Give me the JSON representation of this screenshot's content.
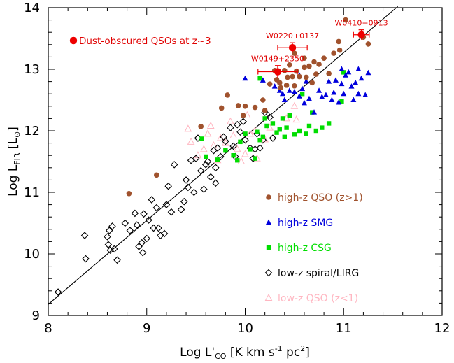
{
  "chart_data": {
    "type": "scatter",
    "xlabel": {
      "pre": "Log L'",
      "sub": "CO",
      "post": " [K km s",
      "sup": "-1",
      "post2": " pc",
      "sup2": "2",
      "post3": "]"
    },
    "ylabel": {
      "pre": "Log L",
      "sub": "FIR",
      "post": " [L",
      "sub2": "⊙",
      "post2": "]"
    },
    "xlim": [
      8,
      12
    ],
    "ylim": [
      9,
      14
    ],
    "xticks": [
      "8",
      "9",
      "10",
      "11",
      "12"
    ],
    "yticks": [
      "9",
      "10",
      "11",
      "12",
      "13",
      "14"
    ],
    "fit_line": {
      "x": [
        8.0,
        11.55
      ],
      "y": [
        9.18,
        14.02
      ]
    },
    "colors": {
      "qso_highz": "#a0522d",
      "smg": "#0000dd",
      "csg": "#00dd00",
      "spiral": "#000000",
      "qso_lowz": "#ffb6c1",
      "dust": "#ee0000"
    },
    "legend": [
      {
        "label": "high-z QSO (z>1)",
        "key": "qso_highz",
        "marker": "circle"
      },
      {
        "label": "high-z SMG",
        "key": "smg",
        "marker": "triangle"
      },
      {
        "label": "high-z CSG",
        "key": "csg",
        "marker": "square"
      },
      {
        "label": "low-z spiral/LIRG",
        "key": "spiral",
        "marker": "diamond"
      },
      {
        "label": "low-z QSO (z<1)",
        "key": "qso_lowz",
        "marker": "open-triangle"
      }
    ],
    "dust_legend": "Dust-obscured QSOs at z~3",
    "series": [
      {
        "key": "dust",
        "points": [
          {
            "x": 10.33,
            "y": 12.96,
            "xerr": 0.2,
            "yerr": 0.1,
            "label": "W0149+2350"
          },
          {
            "x": 10.48,
            "y": 13.35,
            "xerr": 0.15,
            "yerr": 0.08,
            "label": "W0220+0137"
          },
          {
            "x": 11.18,
            "y": 13.56,
            "xerr": 0.08,
            "yerr": 0.08,
            "label": "W0410−0913"
          }
        ]
      },
      {
        "key": "qso_highz",
        "points": [
          [
            8.82,
            10.98
          ],
          [
            9.1,
            11.28
          ],
          [
            9.55,
            12.07
          ],
          [
            9.76,
            12.37
          ],
          [
            9.82,
            12.58
          ],
          [
            9.93,
            12.41
          ],
          [
            9.98,
            12.25
          ],
          [
            10.0,
            12.4
          ],
          [
            10.1,
            12.38
          ],
          [
            10.18,
            12.5
          ],
          [
            10.2,
            12.33
          ],
          [
            10.25,
            12.76
          ],
          [
            10.3,
            12.98
          ],
          [
            10.32,
            12.83
          ],
          [
            10.35,
            12.78
          ],
          [
            10.36,
            12.7
          ],
          [
            10.4,
            12.98
          ],
          [
            10.42,
            12.74
          ],
          [
            10.43,
            12.87
          ],
          [
            10.45,
            13.07
          ],
          [
            10.48,
            12.88
          ],
          [
            10.5,
            12.73
          ],
          [
            10.5,
            13.26
          ],
          [
            10.52,
            12.97
          ],
          [
            10.55,
            12.88
          ],
          [
            10.6,
            13.03
          ],
          [
            10.6,
            13.18
          ],
          [
            10.62,
            12.87
          ],
          [
            10.65,
            13.05
          ],
          [
            10.68,
            12.78
          ],
          [
            10.7,
            13.12
          ],
          [
            10.72,
            12.92
          ],
          [
            10.75,
            13.08
          ],
          [
            10.8,
            13.18
          ],
          [
            10.85,
            12.93
          ],
          [
            10.9,
            13.26
          ],
          [
            10.95,
            13.45
          ],
          [
            10.96,
            13.31
          ],
          [
            11.02,
            13.8
          ],
          [
            11.2,
            13.52
          ],
          [
            11.25,
            13.41
          ]
        ]
      },
      {
        "key": "smg",
        "points": [
          [
            10.0,
            12.85
          ],
          [
            10.18,
            12.82
          ],
          [
            10.3,
            12.72
          ],
          [
            10.35,
            12.65
          ],
          [
            10.38,
            12.6
          ],
          [
            10.4,
            12.5
          ],
          [
            10.45,
            12.65
          ],
          [
            10.5,
            12.63
          ],
          [
            10.55,
            12.56
          ],
          [
            10.58,
            12.68
          ],
          [
            10.6,
            12.45
          ],
          [
            10.62,
            12.8
          ],
          [
            10.65,
            12.52
          ],
          [
            10.7,
            12.3
          ],
          [
            10.75,
            12.65
          ],
          [
            10.78,
            12.55
          ],
          [
            10.82,
            12.58
          ],
          [
            10.85,
            12.8
          ],
          [
            10.88,
            12.5
          ],
          [
            10.9,
            12.62
          ],
          [
            10.92,
            12.82
          ],
          [
            10.95,
            12.46
          ],
          [
            10.98,
            12.76
          ],
          [
            11.0,
            12.6
          ],
          [
            11.02,
            12.9
          ],
          [
            11.05,
            12.95
          ],
          [
            11.08,
            12.72
          ],
          [
            11.1,
            12.5
          ],
          [
            11.12,
            12.78
          ],
          [
            11.15,
            13.0
          ],
          [
            11.18,
            12.85
          ],
          [
            11.22,
            12.58
          ],
          [
            11.25,
            12.94
          ],
          [
            11.15,
            12.6
          ],
          [
            10.98,
            13.0
          ],
          [
            10.55,
            12.9
          ]
        ]
      },
      {
        "key": "csg",
        "points": [
          [
            9.56,
            11.87
          ],
          [
            9.6,
            11.58
          ],
          [
            9.72,
            11.53
          ],
          [
            9.8,
            11.68
          ],
          [
            9.88,
            11.6
          ],
          [
            9.92,
            11.52
          ],
          [
            9.95,
            11.82
          ],
          [
            10.0,
            11.95
          ],
          [
            10.05,
            11.7
          ],
          [
            10.1,
            11.55
          ],
          [
            10.12,
            11.98
          ],
          [
            10.15,
            11.85
          ],
          [
            10.18,
            11.9
          ],
          [
            10.22,
            12.08
          ],
          [
            10.28,
            12.12
          ],
          [
            10.32,
            11.97
          ],
          [
            10.35,
            12.02
          ],
          [
            10.38,
            12.2
          ],
          [
            10.4,
            11.9
          ],
          [
            10.42,
            12.05
          ],
          [
            10.45,
            12.25
          ],
          [
            10.5,
            11.94
          ],
          [
            10.55,
            12.0
          ],
          [
            10.58,
            12.6
          ],
          [
            10.62,
            11.95
          ],
          [
            10.65,
            12.08
          ],
          [
            10.68,
            12.3
          ],
          [
            10.72,
            12.0
          ],
          [
            10.78,
            12.05
          ],
          [
            10.85,
            12.12
          ],
          [
            10.98,
            12.48
          ],
          [
            11.0,
            12.95
          ],
          [
            10.15,
            12.85
          ],
          [
            10.2,
            12.2
          ]
        ]
      },
      {
        "key": "spiral",
        "points": [
          [
            8.1,
            9.38
          ],
          [
            8.37,
            10.3
          ],
          [
            8.38,
            9.92
          ],
          [
            8.6,
            10.28
          ],
          [
            8.61,
            10.15
          ],
          [
            8.62,
            10.38
          ],
          [
            8.63,
            10.06
          ],
          [
            8.65,
            10.45
          ],
          [
            8.67,
            10.08
          ],
          [
            8.7,
            9.9
          ],
          [
            8.78,
            10.5
          ],
          [
            8.83,
            10.38
          ],
          [
            8.88,
            10.66
          ],
          [
            8.9,
            10.47
          ],
          [
            8.92,
            10.12
          ],
          [
            8.95,
            10.18
          ],
          [
            8.96,
            10.02
          ],
          [
            8.97,
            10.65
          ],
          [
            9.0,
            10.25
          ],
          [
            9.02,
            10.55
          ],
          [
            9.05,
            10.88
          ],
          [
            9.07,
            10.42
          ],
          [
            9.1,
            10.75
          ],
          [
            9.12,
            10.42
          ],
          [
            9.14,
            10.3
          ],
          [
            9.18,
            10.33
          ],
          [
            9.2,
            10.8
          ],
          [
            9.22,
            11.1
          ],
          [
            9.25,
            10.68
          ],
          [
            9.28,
            11.45
          ],
          [
            9.35,
            10.72
          ],
          [
            9.38,
            10.85
          ],
          [
            9.4,
            11.2
          ],
          [
            9.42,
            11.08
          ],
          [
            9.45,
            11.52
          ],
          [
            9.48,
            11.0
          ],
          [
            9.5,
            11.55
          ],
          [
            9.52,
            11.88
          ],
          [
            9.55,
            11.35
          ],
          [
            9.58,
            11.05
          ],
          [
            9.62,
            11.5
          ],
          [
            9.65,
            11.25
          ],
          [
            9.68,
            11.68
          ],
          [
            9.7,
            11.4
          ],
          [
            9.72,
            11.72
          ],
          [
            9.75,
            11.58
          ],
          [
            9.78,
            11.9
          ],
          [
            9.8,
            11.83
          ],
          [
            9.85,
            12.05
          ],
          [
            9.88,
            11.75
          ],
          [
            9.9,
            11.58
          ],
          [
            9.92,
            12.1
          ],
          [
            9.95,
            11.98
          ],
          [
            9.98,
            12.15
          ],
          [
            10.0,
            11.85
          ],
          [
            10.05,
            11.72
          ],
          [
            10.08,
            11.55
          ],
          [
            10.1,
            11.7
          ],
          [
            10.12,
            11.95
          ],
          [
            10.15,
            11.72
          ],
          [
            10.18,
            11.85
          ],
          [
            10.2,
            12.3
          ],
          [
            10.25,
            12.22
          ],
          [
            10.28,
            11.88
          ],
          [
            9.7,
            11.15
          ],
          [
            9.6,
            11.45
          ]
        ]
      },
      {
        "key": "qso_lowz",
        "points": [
          [
            9.42,
            12.03
          ],
          [
            9.45,
            11.82
          ],
          [
            9.52,
            11.6
          ],
          [
            9.58,
            11.7
          ],
          [
            9.62,
            11.95
          ],
          [
            9.65,
            12.08
          ],
          [
            9.68,
            11.76
          ],
          [
            9.72,
            11.52
          ],
          [
            9.75,
            11.88
          ],
          [
            9.8,
            11.8
          ],
          [
            9.85,
            12.15
          ],
          [
            9.88,
            11.92
          ],
          [
            9.92,
            11.7
          ],
          [
            9.96,
            11.5
          ],
          [
            10.0,
            11.62
          ],
          [
            10.02,
            12.25
          ],
          [
            10.05,
            11.95
          ],
          [
            10.1,
            12.0
          ],
          [
            10.12,
            11.55
          ],
          [
            10.2,
            11.86
          ],
          [
            10.25,
            12.05
          ],
          [
            10.52,
            12.18
          ],
          [
            10.5,
            12.4
          ],
          [
            10.42,
            12.2
          ]
        ]
      }
    ]
  }
}
